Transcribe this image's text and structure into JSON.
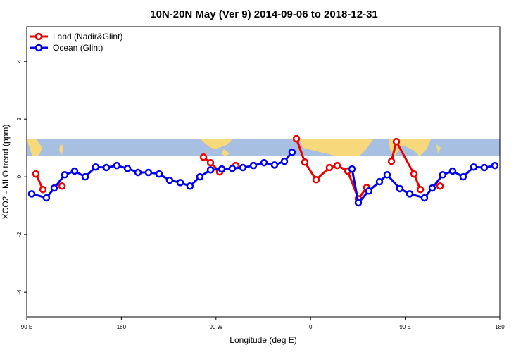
{
  "chart_data": {
    "type": "line",
    "title": "10N-20N May (Ver 9)   2014-09-06 to 2018-12-31",
    "x_label": "Longitude (deg E)",
    "y_label": "XCO2 - MLO trend (ppm)",
    "xlim": [
      90,
      540
    ],
    "xticks": [
      {
        "value": 90,
        "label": "90 E"
      },
      {
        "value": 180,
        "label": "180"
      },
      {
        "value": 270,
        "label": "90 W"
      },
      {
        "value": 360,
        "label": "0"
      },
      {
        "value": 450,
        "label": "90 E"
      },
      {
        "value": 540,
        "label": "180"
      }
    ],
    "ylim": [
      -4.85,
      5.2
    ],
    "yticks": [
      -4,
      -2,
      0,
      2,
      4
    ],
    "legend": "top-left",
    "series": [
      {
        "name": "Land (Nadir&Glint)",
        "color": "#ee0000",
        "x": [
          98.7,
          105.4,
          null,
          123.5,
          null,
          258.1,
          264.8,
          273.5,
          null,
          288.9,
          null,
          346.5,
          354.5,
          365.2,
          377.9,
          385.3,
          395.3,
          405.4,
          413.4,
          null,
          436.9,
          441.6,
          458.3,
          464.4,
          null,
          483.1
        ],
        "values": [
          0.1,
          -0.44,
          null,
          -0.32,
          null,
          0.68,
          0.49,
          0.17,
          null,
          0.39,
          null,
          1.32,
          0.51,
          -0.1,
          0.32,
          0.39,
          0.2,
          -0.76,
          -0.37,
          null,
          0.54,
          1.22,
          0.1,
          -0.44,
          null,
          -0.32
        ]
      },
      {
        "name": "Ocean (Glint)",
        "color": "#0000ee",
        "x": [
          94.7,
          108.7,
          116.1,
          126.2,
          135.5,
          145.6,
          155.6,
          165.7,
          175.7,
          185.8,
          195.8,
          205.8,
          215.9,
          225.9,
          236.0,
          245.3,
          254.7,
          264.8,
          275.5,
          285.5,
          295.6,
          305.6,
          315.7,
          325.7,
          335.1,
          342.4,
          null,
          399.4,
          405.4,
          415.4,
          425.5,
          432.8,
          444.9,
          454.3,
          468.3,
          475.7,
          485.7,
          495.1,
          505.1,
          515.2,
          525.2,
          535.3
        ],
        "values": [
          -0.59,
          -0.73,
          -0.39,
          0.07,
          0.2,
          0.0,
          0.34,
          0.32,
          0.39,
          0.29,
          0.15,
          0.15,
          0.1,
          -0.12,
          -0.2,
          -0.32,
          0.0,
          0.24,
          0.27,
          0.29,
          0.32,
          0.39,
          0.49,
          0.41,
          0.54,
          0.85,
          null,
          0.27,
          -0.9,
          -0.49,
          -0.17,
          0.07,
          -0.41,
          -0.59,
          -0.73,
          -0.39,
          0.07,
          0.2,
          0.0,
          0.34,
          0.32,
          0.39
        ]
      }
    ]
  }
}
